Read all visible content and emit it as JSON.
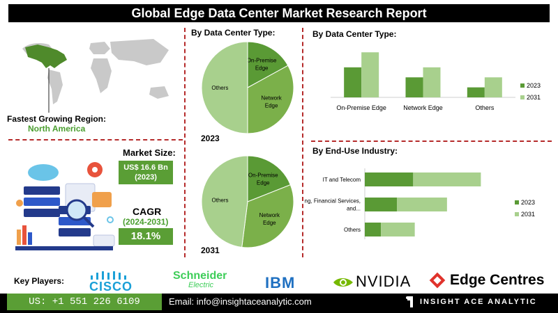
{
  "title": "Global Edge Data Center Market Research Report",
  "region": {
    "label": "Fastest Growing Region:",
    "value": "North America"
  },
  "market_size": {
    "label": "Market Size:",
    "value": "US$ 16.6 Bn",
    "year": "(2023)"
  },
  "cagr": {
    "label": "CAGR",
    "period": "(2024-2031)",
    "value": "18.1%"
  },
  "key_players": {
    "label": "Key Players:",
    "logos": [
      "CISCO",
      "Schneider",
      "Electric",
      "IBM",
      "NVIDIA",
      "Edge Centres"
    ]
  },
  "footer": {
    "phone": "US: +1 551 226 6109",
    "email": "Email: info@insightaceanalytic.com",
    "brand": "INSIGHT ACE ANALYTIC"
  },
  "colors": {
    "dark_green": "#5a9a35",
    "light_green": "#a8d08d",
    "mid_green": "#7bb04a",
    "divider": "#b52a2a"
  },
  "chart_data": [
    {
      "type": "pie",
      "title": "By Data Center Type:",
      "caption": "2023",
      "labels": [
        "On-Premise Edge",
        "Network Edge",
        "Others"
      ],
      "values": [
        17,
        33,
        50
      ]
    },
    {
      "type": "pie",
      "title": "",
      "caption": "2031",
      "labels": [
        "On-Premise Edge",
        "Network Edge",
        "Others"
      ],
      "values": [
        19,
        33,
        48
      ]
    },
    {
      "type": "bar",
      "title": "By Data Center Type:",
      "categories": [
        "On-Premise Edge",
        "Network Edge",
        "Others"
      ],
      "series": [
        {
          "name": "2023",
          "values": [
            3.0,
            2.0,
            1.0
          ]
        },
        {
          "name": "2031",
          "values": [
            4.5,
            3.0,
            2.0
          ]
        }
      ],
      "ylim": [
        0,
        5
      ],
      "legend": "right"
    },
    {
      "type": "bar",
      "orientation": "horizontal",
      "stacked": true,
      "title": "By End-Use Industry:",
      "categories": [
        "IT and Telecom",
        "Banking, Financial Services, and...",
        "Others"
      ],
      "series": [
        {
          "name": "2023",
          "values": [
            3.0,
            2.0,
            1.0
          ]
        },
        {
          "name": "2031",
          "values": [
            4.2,
            3.1,
            2.1
          ]
        }
      ],
      "xlim": [
        0,
        9
      ],
      "legend": "right"
    }
  ]
}
